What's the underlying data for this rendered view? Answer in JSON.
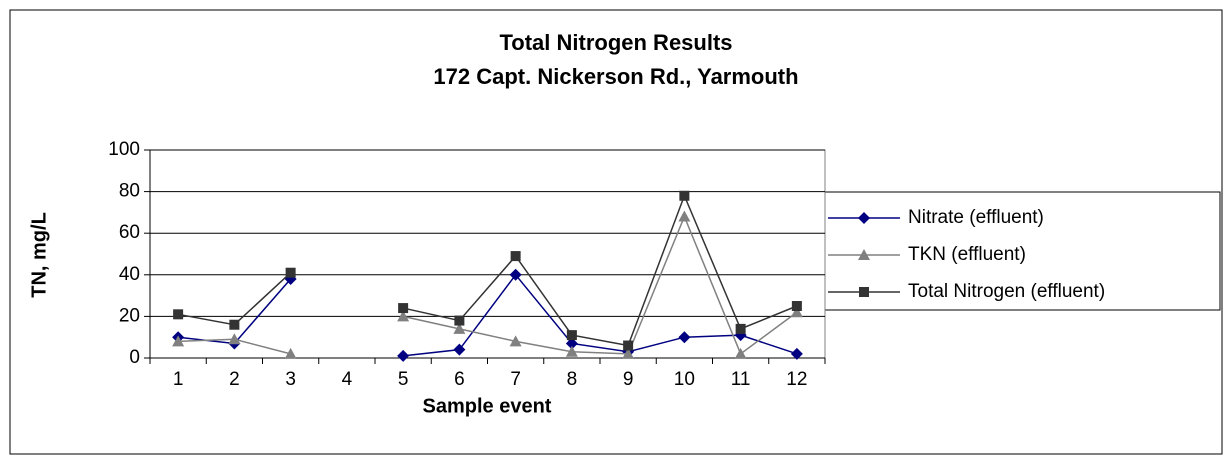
{
  "chart_data": {
    "type": "line",
    "title": [
      "Total Nitrogen Results",
      "172 Capt. Nickerson Rd., Yarmouth"
    ],
    "x_label": "Sample event",
    "y_label": "TN, mg/L",
    "categories": [
      "1",
      "2",
      "3",
      "4",
      "5",
      "6",
      "7",
      "8",
      "9",
      "10",
      "11",
      "12"
    ],
    "series": [
      {
        "name": "Nitrate (effluent)",
        "color": "#000080",
        "marker": "diamond",
        "values": [
          10,
          7,
          38,
          null,
          1,
          4,
          40,
          7,
          3,
          10,
          11,
          2
        ]
      },
      {
        "name": "TKN (effluent)",
        "color": "#808080",
        "marker": "triangle",
        "values": [
          8,
          9,
          2,
          null,
          20,
          14,
          8,
          3,
          2,
          68,
          2,
          22
        ]
      },
      {
        "name": "Total Nitrogen (effluent)",
        "color": "#333333",
        "marker": "square",
        "values": [
          21,
          16,
          41,
          null,
          24,
          18,
          49,
          11,
          6,
          78,
          14,
          25
        ]
      }
    ],
    "ylim": [
      0,
      100
    ],
    "yticks": [
      0,
      20,
      40,
      60,
      80,
      100
    ],
    "grid": true,
    "legend": "right"
  }
}
